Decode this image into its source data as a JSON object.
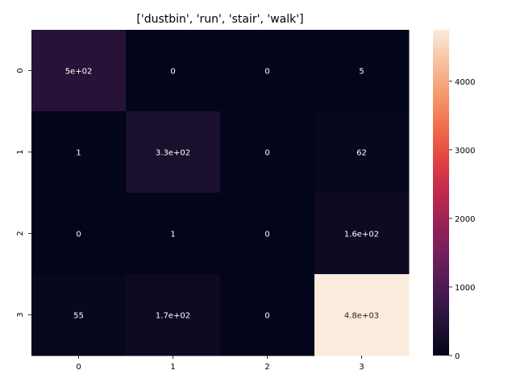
{
  "chart_data": {
    "type": "heatmap",
    "title": "['dustbin', 'run', 'stair', 'walk']",
    "xlabel": "",
    "ylabel": "",
    "x_ticks": [
      "0",
      "1",
      "2",
      "3"
    ],
    "y_ticks": [
      "0",
      "1",
      "2",
      "3"
    ],
    "values": [
      [
        500,
        0,
        0,
        5
      ],
      [
        1,
        330,
        0,
        62
      ],
      [
        0,
        1,
        0,
        160
      ],
      [
        55,
        170,
        0,
        4800
      ]
    ],
    "annotations": [
      [
        "5e+02",
        "0",
        "0",
        "5"
      ],
      [
        "1",
        "3.3e+02",
        "0",
        "62"
      ],
      [
        "0",
        "1",
        "0",
        "1.6e+02"
      ],
      [
        "55",
        "1.7e+02",
        "0",
        "4.8e+03"
      ]
    ],
    "colormap": "rocket",
    "colorbar": {
      "range": [
        0,
        4750
      ],
      "ticks": [
        0,
        1000,
        2000,
        3000,
        4000
      ],
      "tick_labels": [
        "0",
        "1000",
        "2000",
        "3000",
        "4000"
      ]
    }
  }
}
